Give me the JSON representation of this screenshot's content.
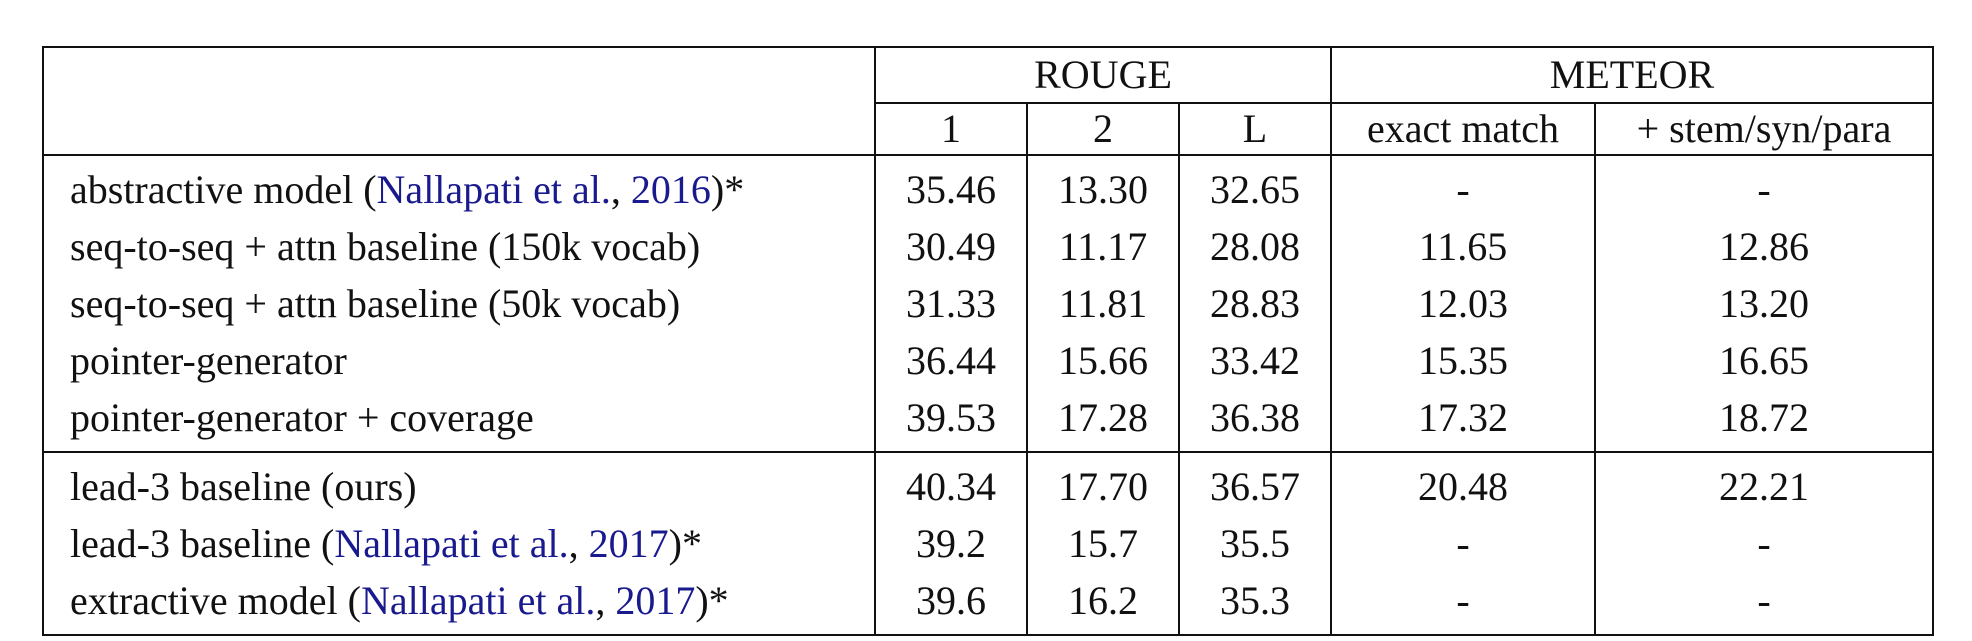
{
  "header": {
    "group_rouge": "ROUGE",
    "group_meteor": "METEOR",
    "rouge_1": "1",
    "rouge_2": "2",
    "rouge_l": "L",
    "meteor_exact": "exact match",
    "meteor_stem": "+ stem/syn/para"
  },
  "rows": [
    {
      "model_prefix": "abstractive model (",
      "cite_authors": "Nallapati et al.",
      "cite_sep": ", ",
      "cite_year": "2016",
      "model_suffix": ")*",
      "r1": "35.46",
      "r2": "13.30",
      "rl": "32.65",
      "exact": "-",
      "stem": "-"
    },
    {
      "model": "seq-to-seq + attn baseline (150k vocab)",
      "r1": "30.49",
      "r2": "11.17",
      "rl": "28.08",
      "exact": "11.65",
      "stem": "12.86"
    },
    {
      "model": "seq-to-seq + attn baseline (50k vocab)",
      "r1": "31.33",
      "r2": "11.81",
      "rl": "28.83",
      "exact": "12.03",
      "stem": "13.20"
    },
    {
      "model": "pointer-generator",
      "r1": "36.44",
      "r2": "15.66",
      "rl": "33.42",
      "exact": "15.35",
      "stem": "16.65"
    },
    {
      "model": "pointer-generator + coverage",
      "r1": "39.53",
      "r2": "17.28",
      "rl": "36.38",
      "exact": "17.32",
      "stem": "18.72",
      "bold_rouge": true
    },
    {
      "model": "lead-3 baseline (ours)",
      "r1": "40.34",
      "r2": "17.70",
      "rl": "36.57",
      "exact": "20.48",
      "stem": "22.21"
    },
    {
      "model_prefix": "lead-3 baseline (",
      "cite_authors": "Nallapati et al.",
      "cite_sep": ", ",
      "cite_year": "2017",
      "model_suffix": ")*",
      "r1": "39.2",
      "r2": "15.7",
      "rl": "35.5",
      "exact": "-",
      "stem": "-"
    },
    {
      "model_prefix": "extractive model (",
      "cite_authors": "Nallapati et al.",
      "cite_sep": ", ",
      "cite_year": "2017",
      "model_suffix": ")*",
      "r1": "39.6",
      "r2": "16.2",
      "rl": "35.3",
      "exact": "-",
      "stem": "-"
    }
  ]
}
